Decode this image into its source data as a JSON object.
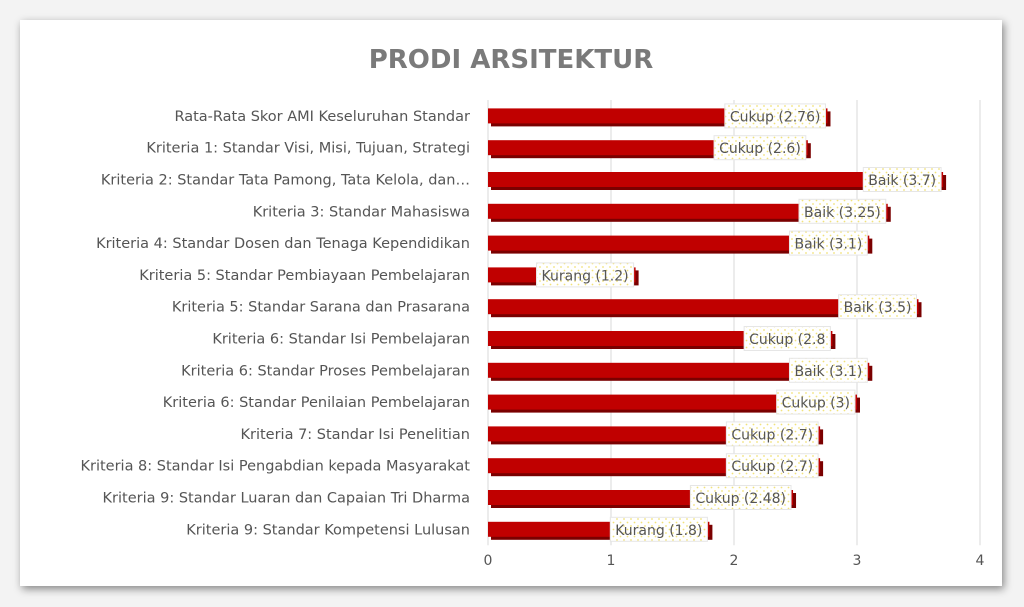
{
  "chart_data": {
    "type": "bar",
    "orientation": "horizontal",
    "title": "PRODI ARSITEKTUR",
    "categories": [
      "Rata-Rata Skor AMI Keseluruhan Standar",
      "Kriteria 1: Standar Visi, Misi, Tujuan, Strategi",
      "Kriteria 2: Standar Tata Pamong, Tata Kelola, dan…",
      "Kriteria 3: Standar Mahasiswa",
      "Kriteria 4: Standar Dosen dan Tenaga Kependidikan",
      "Kriteria 5: Standar Pembiayaan Pembelajaran",
      "Kriteria 5: Standar Sarana dan Prasarana",
      "Kriteria 6: Standar Isi Pembelajaran",
      "Kriteria 6: Standar Proses Pembelajaran",
      "Kriteria 6: Standar Penilaian Pembelajaran",
      "Kriteria 7: Standar Isi Penelitian",
      "Kriteria 8: Standar Isi Pengabdian kepada Masyarakat",
      "Kriteria 9: Standar Luaran dan Capaian Tri Dharma",
      "Kriteria 9: Standar Kompetensi Lulusan"
    ],
    "values": [
      2.76,
      2.6,
      3.7,
      3.25,
      3.1,
      1.2,
      3.5,
      2.8,
      3.1,
      3.0,
      2.7,
      2.7,
      2.48,
      1.8
    ],
    "data_labels": [
      "Cukup (2.76)",
      "Cukup (2.6)",
      "Baik (3.7)",
      "Baik (3.25)",
      "Baik (3.1)",
      "Kurang (1.2)",
      "Baik (3.5)",
      "Cukup (2.8",
      "Baik (3.1)",
      "Cukup (3)",
      "Cukup (2.7)",
      "Cukup (2.7)",
      "Cukup (2.48)",
      "Kurang (1.8)"
    ],
    "xlim": [
      0,
      4
    ],
    "xticks": [
      "0",
      "1",
      "2",
      "3",
      "4"
    ],
    "grid": true,
    "legend": "none",
    "colors": {
      "bar": "#c00000",
      "bar_shadow": "#7a0000",
      "label_box": "#ffffff",
      "label_dots": "#f2e27a",
      "grid": "#d9d9d9",
      "text": "#555555",
      "title": "#7a7a7a"
    }
  }
}
